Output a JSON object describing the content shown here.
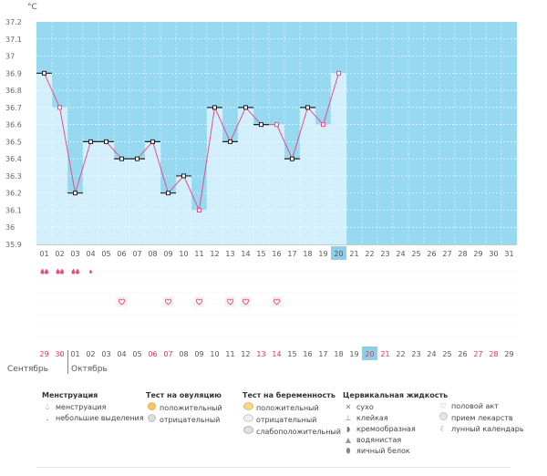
{
  "chart_data": {
    "type": "line",
    "unit": "°C",
    "ylim": [
      35.9,
      37.2
    ],
    "yticks": [
      "35.9",
      "36",
      "36.1",
      "36.2",
      "36.3",
      "36.4",
      "36.5",
      "36.6",
      "36.7",
      "36.8",
      "36.9",
      "37",
      "37.1",
      "37.2"
    ],
    "cycle_days": [
      "01",
      "02",
      "03",
      "04",
      "05",
      "06",
      "07",
      "08",
      "09",
      "10",
      "11",
      "12",
      "13",
      "14",
      "15",
      "16",
      "17",
      "18",
      "19",
      "20",
      "21",
      "22",
      "23",
      "24",
      "25",
      "26",
      "27",
      "28",
      "29",
      "30",
      "31"
    ],
    "current_day": "20",
    "temperatures": [
      36.9,
      36.7,
      36.2,
      36.5,
      36.5,
      36.4,
      36.4,
      36.5,
      36.2,
      36.3,
      36.1,
      36.7,
      36.5,
      36.7,
      36.6,
      36.6,
      36.4,
      36.7,
      36.6,
      36.9
    ],
    "point_markers": [
      "b",
      "p",
      "b",
      "b",
      "b",
      "b",
      "b",
      "b",
      "b",
      "b",
      "p",
      "b",
      "b",
      "b",
      "b",
      "p",
      "b",
      "b",
      "p",
      "p"
    ],
    "calendar_dates": [
      "29",
      "30",
      "01",
      "02",
      "03",
      "04",
      "05",
      "06",
      "07",
      "08",
      "09",
      "10",
      "11",
      "12",
      "13",
      "14",
      "15",
      "16",
      "17",
      "18",
      "19",
      "20",
      "21",
      "22",
      "23",
      "24",
      "25",
      "26",
      "27",
      "28",
      "29"
    ],
    "weekend_dates": [
      0,
      1,
      7,
      8,
      14,
      15,
      21,
      22,
      28,
      29
    ],
    "today_index": 21,
    "months": [
      {
        "name": "Сентябрь",
        "start": 0
      },
      {
        "name": "Октябрь",
        "start": 2
      }
    ],
    "menstruation_large": [
      0,
      1,
      2
    ],
    "menstruation_small": [
      3
    ],
    "intercourse": [
      5,
      8,
      10,
      12,
      13,
      15
    ],
    "colors": {
      "bg": "#97d9f1",
      "bar": "#d3effc",
      "line": "#e84d86",
      "today": "#8dcfe8",
      "weekend": "#e8334d"
    }
  },
  "legend": {
    "menstruation": {
      "title": "Менструация",
      "items": [
        "менструация",
        "небольшие выделения"
      ]
    },
    "ovulation": {
      "title": "Тест на овуляцию",
      "items": [
        "положительный",
        "отрицательный"
      ]
    },
    "pregnancy": {
      "title": "Тест на беременность",
      "items": [
        "положительный",
        "отрицательный",
        "слабоположительный"
      ]
    },
    "cervical": {
      "title": "Цервикальная жидкость",
      "items": [
        "сухо",
        "клейкая",
        "кремообразная",
        "водянистая",
        "яичный белок"
      ]
    },
    "other": {
      "items": [
        "половой акт",
        "прием лекарств",
        "лунный календарь"
      ]
    }
  }
}
